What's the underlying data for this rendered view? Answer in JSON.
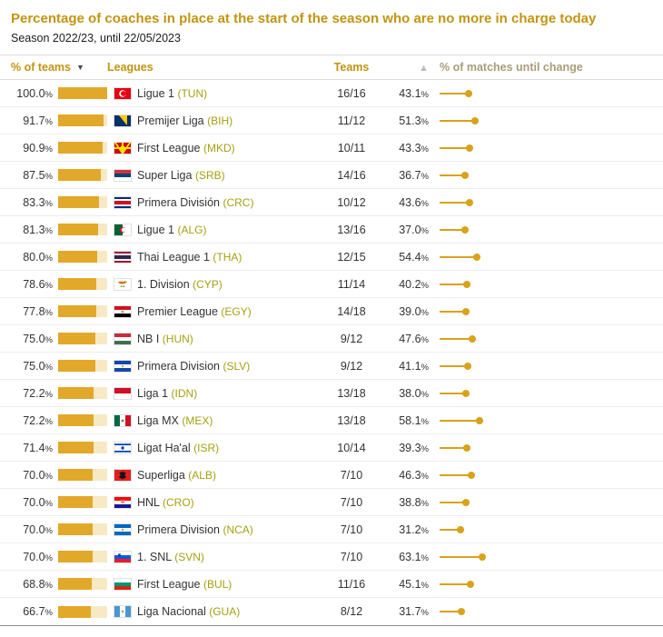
{
  "title": "Percentage of coaches in place at the start of the season who are no more in charge today",
  "subtitle": "Season 2022/23, until 22/05/2023",
  "header": {
    "col_pct_teams": "% of teams",
    "col_leagues": "Leagues",
    "col_teams": "Teams",
    "col_pct_matches": "% of matches until change",
    "sort_desc_icon": "▼",
    "sort_asc_icon": "▲"
  },
  "colors": {
    "title_gold": "#c29411",
    "bar_fill": "#e2a829",
    "bar_track": "#f6e9c3",
    "lollipop": "#d9a21b",
    "country_code": "#a4a011"
  },
  "chart_data": {
    "type": "table",
    "title": "Percentage of coaches in place at the start of the season who are no more in charge today",
    "subtitle": "Season 2022/23, until 22/05/2023",
    "columns": [
      "% of teams",
      "Leagues",
      "Teams",
      "% of matches until change"
    ],
    "bar_axis": {
      "min": 0,
      "max": 100
    },
    "rows": [
      {
        "pct_teams": 100.0,
        "pct_teams_label": "100.0%",
        "country": "TUN",
        "league": "Ligue 1",
        "code_label": "(TUN)",
        "teams_label": "16/16",
        "pct_matches": 43.1,
        "pct_matches_label": "43.1%"
      },
      {
        "pct_teams": 91.7,
        "pct_teams_label": "91.7%",
        "country": "BIH",
        "league": "Premijer Liga",
        "code_label": "(BIH)",
        "teams_label": "11/12",
        "pct_matches": 51.3,
        "pct_matches_label": "51.3%"
      },
      {
        "pct_teams": 90.9,
        "pct_teams_label": "90.9%",
        "country": "MKD",
        "league": "First League",
        "code_label": "(MKD)",
        "teams_label": "10/11",
        "pct_matches": 43.3,
        "pct_matches_label": "43.3%"
      },
      {
        "pct_teams": 87.5,
        "pct_teams_label": "87.5%",
        "country": "SRB",
        "league": "Super Liga",
        "code_label": "(SRB)",
        "teams_label": "14/16",
        "pct_matches": 36.7,
        "pct_matches_label": "36.7%"
      },
      {
        "pct_teams": 83.3,
        "pct_teams_label": "83.3%",
        "country": "CRC",
        "league": "Primera División",
        "code_label": "(CRC)",
        "teams_label": "10/12",
        "pct_matches": 43.6,
        "pct_matches_label": "43.6%"
      },
      {
        "pct_teams": 81.3,
        "pct_teams_label": "81.3%",
        "country": "ALG",
        "league": "Ligue 1",
        "code_label": "(ALG)",
        "teams_label": "13/16",
        "pct_matches": 37.0,
        "pct_matches_label": "37.0%"
      },
      {
        "pct_teams": 80.0,
        "pct_teams_label": "80.0%",
        "country": "THA",
        "league": "Thai League 1",
        "code_label": "(THA)",
        "teams_label": "12/15",
        "pct_matches": 54.4,
        "pct_matches_label": "54.4%"
      },
      {
        "pct_teams": 78.6,
        "pct_teams_label": "78.6%",
        "country": "CYP",
        "league": "1. Division",
        "code_label": "(CYP)",
        "teams_label": "11/14",
        "pct_matches": 40.2,
        "pct_matches_label": "40.2%"
      },
      {
        "pct_teams": 77.8,
        "pct_teams_label": "77.8%",
        "country": "EGY",
        "league": "Premier League",
        "code_label": "(EGY)",
        "teams_label": "14/18",
        "pct_matches": 39.0,
        "pct_matches_label": "39.0%"
      },
      {
        "pct_teams": 75.0,
        "pct_teams_label": "75.0%",
        "country": "HUN",
        "league": "NB I",
        "code_label": "(HUN)",
        "teams_label": "9/12",
        "pct_matches": 47.6,
        "pct_matches_label": "47.6%"
      },
      {
        "pct_teams": 75.0,
        "pct_teams_label": "75.0%",
        "country": "SLV",
        "league": "Primera Division",
        "code_label": "(SLV)",
        "teams_label": "9/12",
        "pct_matches": 41.1,
        "pct_matches_label": "41.1%"
      },
      {
        "pct_teams": 72.2,
        "pct_teams_label": "72.2%",
        "country": "IDN",
        "league": "Liga 1",
        "code_label": "(IDN)",
        "teams_label": "13/18",
        "pct_matches": 38.0,
        "pct_matches_label": "38.0%"
      },
      {
        "pct_teams": 72.2,
        "pct_teams_label": "72.2%",
        "country": "MEX",
        "league": "Liga MX",
        "code_label": "(MEX)",
        "teams_label": "13/18",
        "pct_matches": 58.1,
        "pct_matches_label": "58.1%"
      },
      {
        "pct_teams": 71.4,
        "pct_teams_label": "71.4%",
        "country": "ISR",
        "league": "Ligat Ha'al",
        "code_label": "(ISR)",
        "teams_label": "10/14",
        "pct_matches": 39.3,
        "pct_matches_label": "39.3%"
      },
      {
        "pct_teams": 70.0,
        "pct_teams_label": "70.0%",
        "country": "ALB",
        "league": "Superliga",
        "code_label": "(ALB)",
        "teams_label": "7/10",
        "pct_matches": 46.3,
        "pct_matches_label": "46.3%"
      },
      {
        "pct_teams": 70.0,
        "pct_teams_label": "70.0%",
        "country": "CRO",
        "league": "HNL",
        "code_label": "(CRO)",
        "teams_label": "7/10",
        "pct_matches": 38.8,
        "pct_matches_label": "38.8%"
      },
      {
        "pct_teams": 70.0,
        "pct_teams_label": "70.0%",
        "country": "NCA",
        "league": "Primera Division",
        "code_label": "(NCA)",
        "teams_label": "7/10",
        "pct_matches": 31.2,
        "pct_matches_label": "31.2%"
      },
      {
        "pct_teams": 70.0,
        "pct_teams_label": "70.0%",
        "country": "SVN",
        "league": "1. SNL",
        "code_label": "(SVN)",
        "teams_label": "7/10",
        "pct_matches": 63.1,
        "pct_matches_label": "63.1%"
      },
      {
        "pct_teams": 68.8,
        "pct_teams_label": "68.8%",
        "country": "BUL",
        "league": "First League",
        "code_label": "(BUL)",
        "teams_label": "11/16",
        "pct_matches": 45.1,
        "pct_matches_label": "45.1%"
      },
      {
        "pct_teams": 66.7,
        "pct_teams_label": "66.7%",
        "country": "GUA",
        "league": "Liga Nacional",
        "code_label": "(GUA)",
        "teams_label": "8/12",
        "pct_matches": 31.7,
        "pct_matches_label": "31.7%"
      }
    ]
  }
}
